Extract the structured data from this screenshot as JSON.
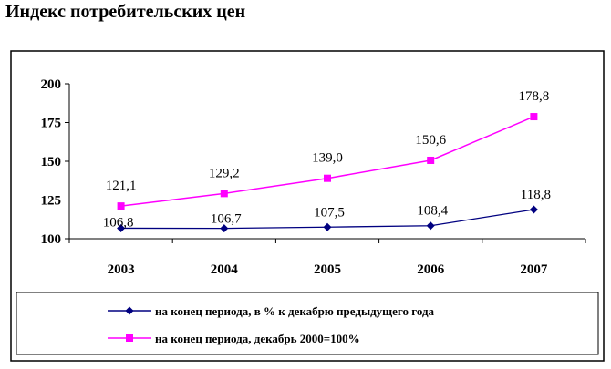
{
  "page": {
    "title": "Индекс потребительских цен"
  },
  "chart_data": {
    "type": "line",
    "title": "",
    "xlabel": "",
    "ylabel": "",
    "categories": [
      "2003",
      "2004",
      "2005",
      "2006",
      "2007"
    ],
    "ylim": [
      100,
      200
    ],
    "yticks": [
      100,
      125,
      150,
      175,
      200
    ],
    "grid": false,
    "legend_position": "bottom",
    "series": [
      {
        "name": "на конец периода, в % к декабрю предыдущего года",
        "values": [
          106.8,
          106.7,
          107.5,
          108.4,
          118.8
        ],
        "labels": [
          "106,8",
          "106,7",
          "107,5",
          "108,4",
          "118,8"
        ],
        "color": "#000080",
        "marker": "diamond"
      },
      {
        "name": "на конец периода, декабрь 2000=100%",
        "values": [
          121.1,
          129.2,
          139.0,
          150.6,
          178.8
        ],
        "labels": [
          "121,1",
          "129,2",
          "139,0",
          "150,6",
          "178,8"
        ],
        "color": "#ff00ff",
        "marker": "square"
      }
    ]
  }
}
